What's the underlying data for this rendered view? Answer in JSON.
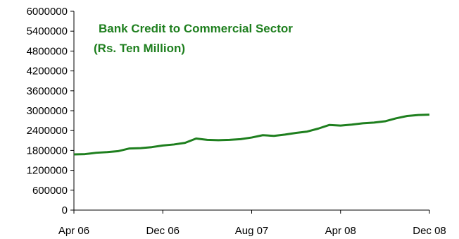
{
  "colors": {
    "series": "#1e7f1e",
    "axis": "#000000",
    "background": "#ffffff"
  },
  "chart_data": {
    "type": "line",
    "title": "Bank Credit to Commercial  Sector",
    "subtitle": "(Rs. Ten Million)",
    "xlabel": "",
    "ylabel": "",
    "ylim": [
      0,
      6000000
    ],
    "yticks": [
      0,
      600000,
      1200000,
      1800000,
      2400000,
      3000000,
      3600000,
      4200000,
      4800000,
      5400000,
      6000000
    ],
    "ytick_labels": [
      "0",
      "600000",
      "1200000",
      "1800000",
      "2400000",
      "3000000",
      "3600000",
      "4200000",
      "4800000",
      "5400000",
      "6000000"
    ],
    "xtick_labels": [
      "Apr 06",
      "Dec 06",
      "Aug 07",
      "Apr 08",
      "Dec 08"
    ],
    "xtick_positions": [
      "Apr 06",
      "Dec 06",
      "Aug 07",
      "Apr 08",
      "Dec 08"
    ],
    "grid": false,
    "legend": "none",
    "x": [
      "Apr 06",
      "May 06",
      "Jun 06",
      "Jul 06",
      "Aug 06",
      "Sep 06",
      "Oct 06",
      "Nov 06",
      "Dec 06",
      "Jan 07",
      "Feb 07",
      "Mar 07",
      "Apr 07",
      "May 07",
      "Jun 07",
      "Jul 07",
      "Aug 07",
      "Sep 07",
      "Oct 07",
      "Nov 07",
      "Dec 07",
      "Jan 08",
      "Feb 08",
      "Mar 08",
      "Apr 08",
      "May 08",
      "Jun 08",
      "Jul 08",
      "Aug 08",
      "Sep 08",
      "Oct 08",
      "Nov 08",
      "Dec 08"
    ],
    "series": [
      {
        "name": "",
        "values": [
          1680000,
          1690000,
          1730000,
          1750000,
          1780000,
          1860000,
          1870000,
          1900000,
          1950000,
          1980000,
          2030000,
          2160000,
          2120000,
          2110000,
          2120000,
          2140000,
          2190000,
          2260000,
          2240000,
          2280000,
          2330000,
          2370000,
          2460000,
          2570000,
          2550000,
          2580000,
          2620000,
          2640000,
          2680000,
          2770000,
          2840000,
          2870000,
          2880000
        ]
      }
    ]
  }
}
